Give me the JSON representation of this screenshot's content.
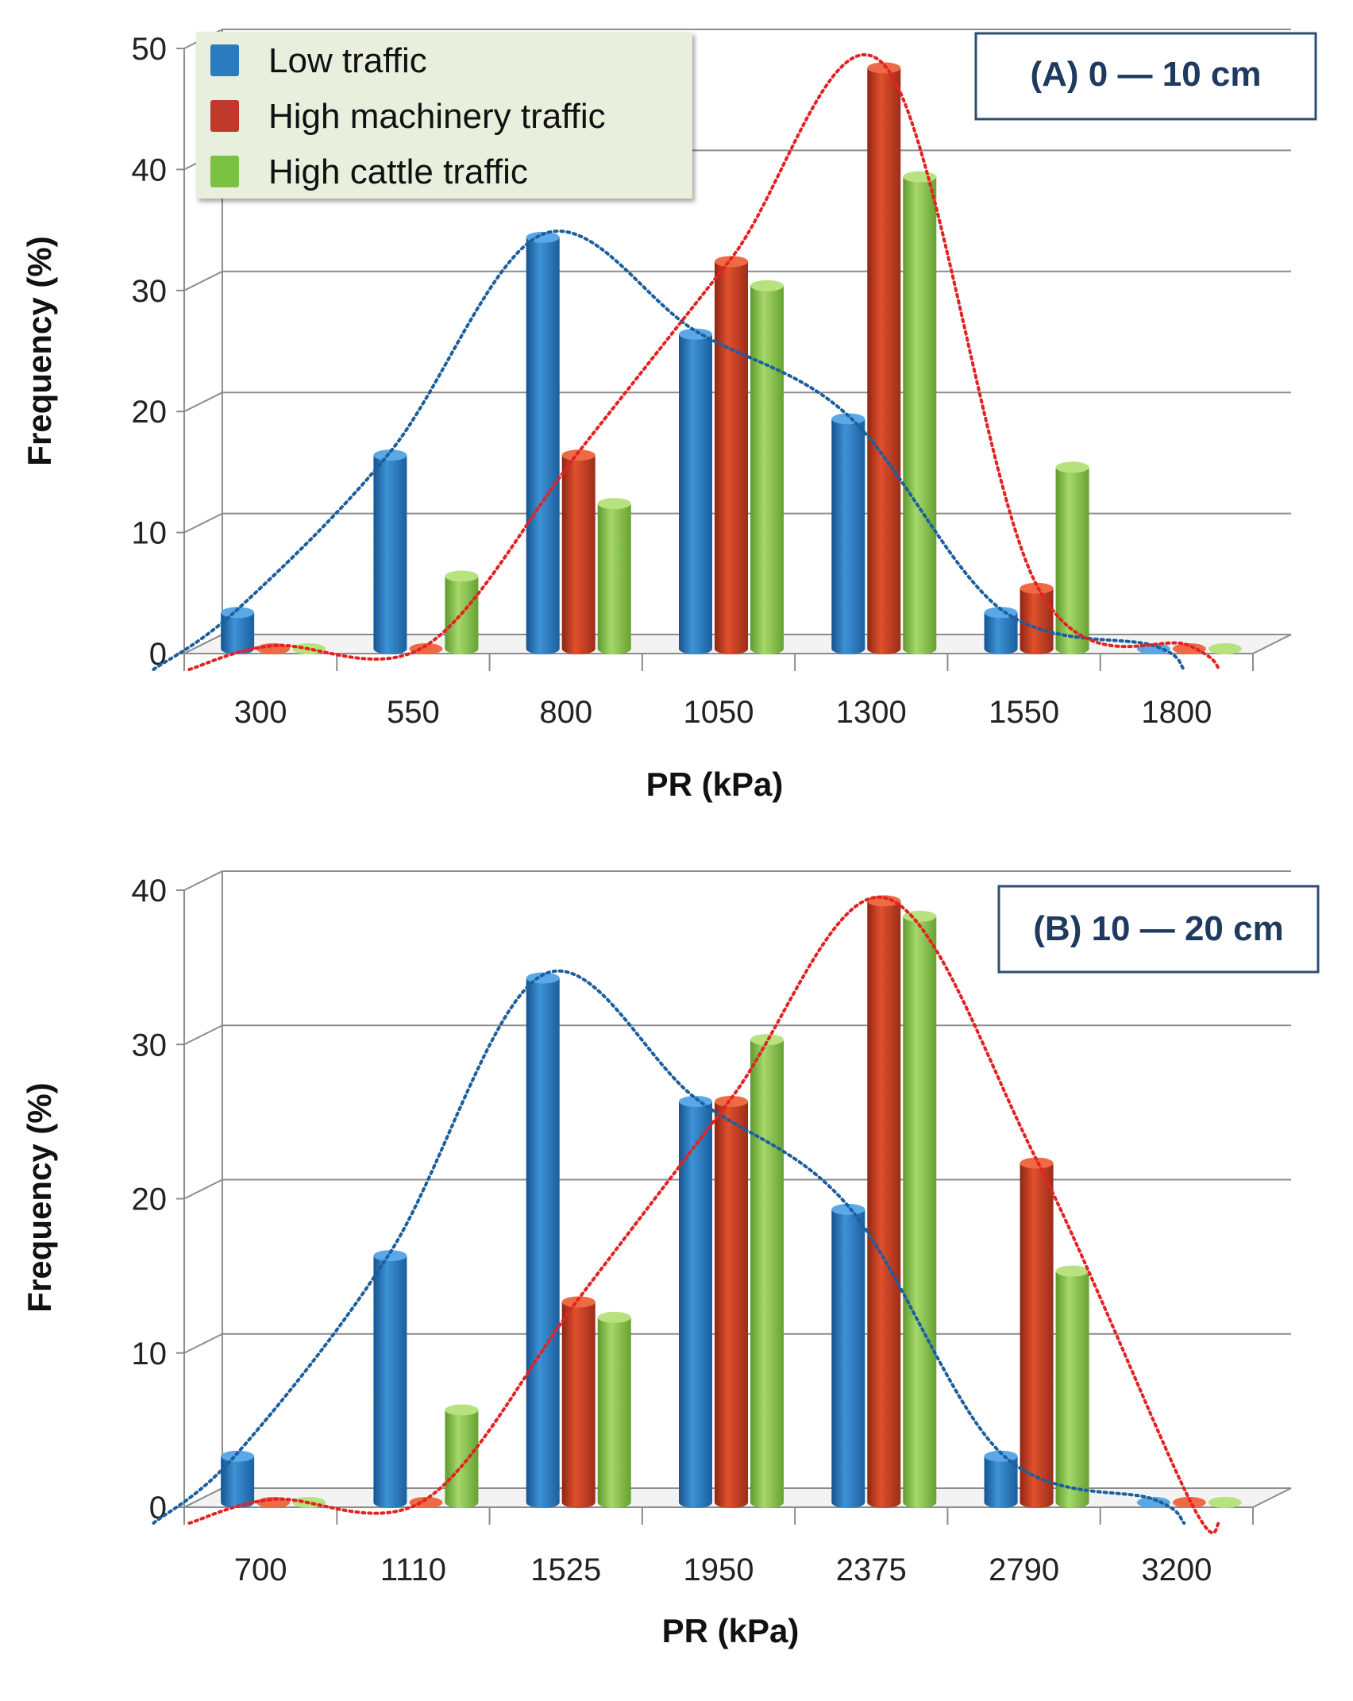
{
  "legend": {
    "items": [
      {
        "label": "Low traffic",
        "color": "#2a7bc0"
      },
      {
        "label": "High machinery traffic",
        "color": "#c0392b"
      },
      {
        "label": "High cattle traffic",
        "color": "#7cc242"
      }
    ]
  },
  "chart_data": [
    {
      "type": "bar",
      "title": "(A) 0 — 10 cm",
      "xlabel": "PR (kPa)",
      "ylabel": "Frequency (%)",
      "ylim": [
        0,
        50
      ],
      "yticks": [
        "0",
        "10",
        "20",
        "30",
        "40",
        "50"
      ],
      "categories": [
        "300",
        "550",
        "800",
        "1050",
        "1300",
        "1550",
        "1800"
      ],
      "trendlines": "dotted smooth curves through Low traffic (blue) and High machinery traffic (red) series",
      "series": [
        {
          "name": "Low traffic",
          "color": "#2a7bc0",
          "values": [
            3,
            16,
            34,
            26,
            19,
            3,
            0
          ]
        },
        {
          "name": "High machinery traffic",
          "color": "#c0392b",
          "values": [
            0,
            0,
            16,
            32,
            48,
            5,
            0
          ]
        },
        {
          "name": "High cattle traffic",
          "color": "#7cc242",
          "values": [
            0,
            6,
            12,
            30,
            39,
            15,
            0
          ]
        }
      ]
    },
    {
      "type": "bar",
      "title": "(B) 10 — 20 cm",
      "xlabel": "PR (kPa)",
      "ylabel": "Frequency (%)",
      "ylim": [
        0,
        40
      ],
      "yticks": [
        "0",
        "10",
        "20",
        "30",
        "40"
      ],
      "categories": [
        "700",
        "1110",
        "1525",
        "1950",
        "2375",
        "2790",
        "3200"
      ],
      "trendlines": "dotted smooth curves through Low traffic (blue) and High machinery traffic (red) series",
      "series": [
        {
          "name": "Low traffic",
          "color": "#2a7bc0",
          "values": [
            3,
            16,
            34,
            26,
            19,
            3,
            0
          ]
        },
        {
          "name": "High machinery traffic",
          "color": "#c0392b",
          "values": [
            0,
            0,
            13,
            26,
            39,
            22,
            0
          ]
        },
        {
          "name": "High cattle traffic",
          "color": "#7cc242",
          "values": [
            0,
            6,
            12,
            30,
            38,
            15,
            0
          ]
        }
      ]
    }
  ]
}
